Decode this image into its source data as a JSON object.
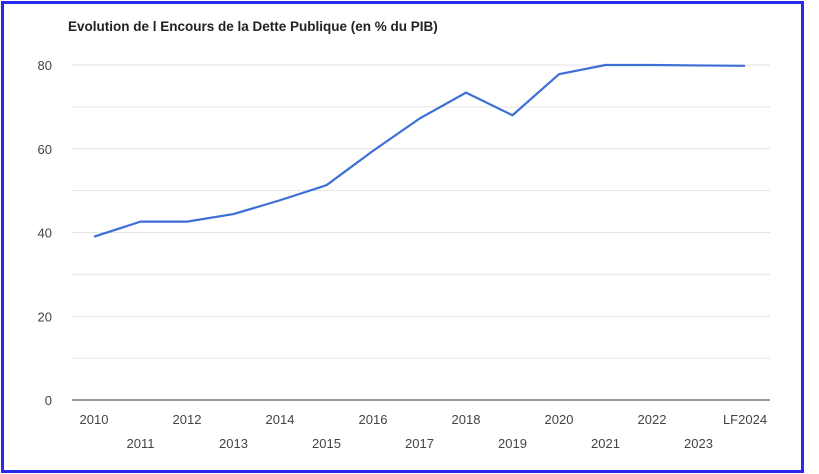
{
  "chart_data": {
    "type": "line",
    "title": "Evolution de l Encours de la Dette Publique (en % du PIB)",
    "xlabel": "",
    "ylabel": "",
    "categories": [
      "2010",
      "2011",
      "2012",
      "2013",
      "2014",
      "2015",
      "2016",
      "2017",
      "2018",
      "2019",
      "2020",
      "2021",
      "2022",
      "2023",
      "LF2024"
    ],
    "series": [
      {
        "name": "Encours de la Dette Publique (% du PIB)",
        "values": [
          39.0,
          42.6,
          42.6,
          44.4,
          47.7,
          51.3,
          59.5,
          67.2,
          73.4,
          68.0,
          77.8,
          80.0,
          80.0,
          79.9,
          79.8
        ]
      }
    ],
    "ylim": [
      0,
      80
    ],
    "yticks": [
      "0",
      "20",
      "40",
      "60",
      "80"
    ],
    "grid": true,
    "legend": "none",
    "colors": {
      "line": "#3d6fd6",
      "grid": "#e4e4e4",
      "frame": "#2a2ae8"
    }
  }
}
